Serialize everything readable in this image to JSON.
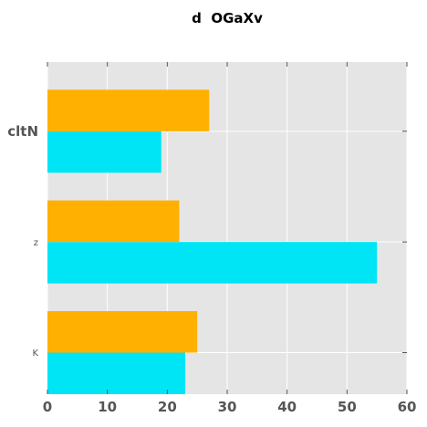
{
  "chart_data": {
    "type": "bar",
    "orientation": "horizontal",
    "title": "d  OGaXv",
    "categories": [
      "K",
      "z",
      "cltN"
    ],
    "series": [
      {
        "color": "#00e5f5",
        "values": [
          23,
          55,
          19
        ]
      },
      {
        "color": "#ffb000",
        "values": [
          25,
          22,
          27
        ]
      }
    ],
    "xlim": [
      0,
      60
    ],
    "xticks": [
      "0",
      "10",
      "20",
      "30",
      "40",
      "50",
      "60"
    ],
    "grid": true,
    "background": "#e5e5e5",
    "grid_color": "#ffffff",
    "legend": "none"
  }
}
